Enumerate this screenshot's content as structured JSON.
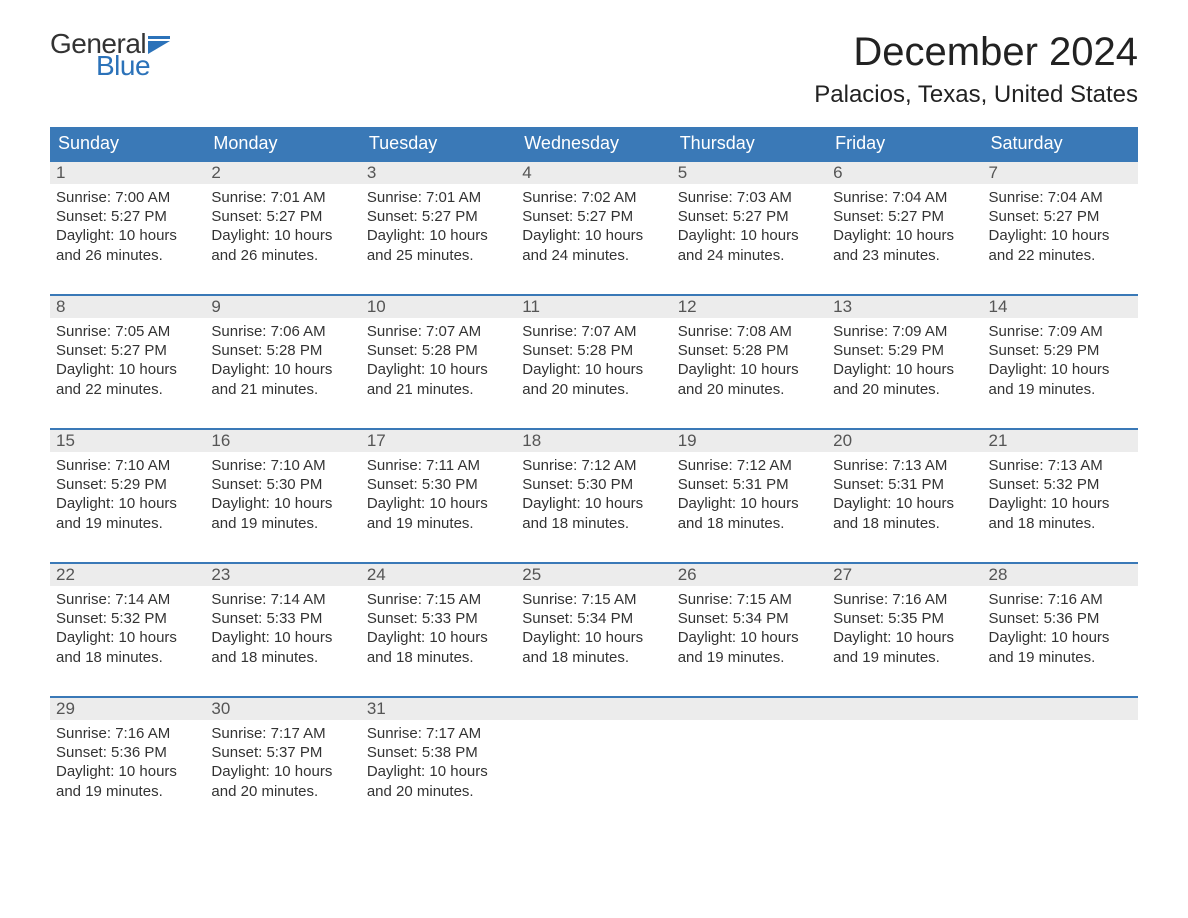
{
  "logo": {
    "general": "General",
    "blue": "Blue",
    "flag_color": "#2b72b9"
  },
  "title": "December 2024",
  "location": "Palacios, Texas, United States",
  "colors": {
    "header_bg": "#3a79b7",
    "header_text": "#ffffff",
    "daynum_bg": "#ececec",
    "daynum_text": "#555555",
    "body_text": "#333333",
    "week_border": "#3a79b7",
    "background": "#ffffff",
    "logo_blue": "#2b72b9"
  },
  "typography": {
    "title_fontsize": 40,
    "location_fontsize": 24,
    "dayheader_fontsize": 18,
    "daynum_fontsize": 17,
    "content_fontsize": 15,
    "font_family": "Arial"
  },
  "day_names": [
    "Sunday",
    "Monday",
    "Tuesday",
    "Wednesday",
    "Thursday",
    "Friday",
    "Saturday"
  ],
  "days": [
    {
      "n": "1",
      "sunrise": "7:00 AM",
      "sunset": "5:27 PM",
      "daylight": "10 hours and 26 minutes."
    },
    {
      "n": "2",
      "sunrise": "7:01 AM",
      "sunset": "5:27 PM",
      "daylight": "10 hours and 26 minutes."
    },
    {
      "n": "3",
      "sunrise": "7:01 AM",
      "sunset": "5:27 PM",
      "daylight": "10 hours and 25 minutes."
    },
    {
      "n": "4",
      "sunrise": "7:02 AM",
      "sunset": "5:27 PM",
      "daylight": "10 hours and 24 minutes."
    },
    {
      "n": "5",
      "sunrise": "7:03 AM",
      "sunset": "5:27 PM",
      "daylight": "10 hours and 24 minutes."
    },
    {
      "n": "6",
      "sunrise": "7:04 AM",
      "sunset": "5:27 PM",
      "daylight": "10 hours and 23 minutes."
    },
    {
      "n": "7",
      "sunrise": "7:04 AM",
      "sunset": "5:27 PM",
      "daylight": "10 hours and 22 minutes."
    },
    {
      "n": "8",
      "sunrise": "7:05 AM",
      "sunset": "5:27 PM",
      "daylight": "10 hours and 22 minutes."
    },
    {
      "n": "9",
      "sunrise": "7:06 AM",
      "sunset": "5:28 PM",
      "daylight": "10 hours and 21 minutes."
    },
    {
      "n": "10",
      "sunrise": "7:07 AM",
      "sunset": "5:28 PM",
      "daylight": "10 hours and 21 minutes."
    },
    {
      "n": "11",
      "sunrise": "7:07 AM",
      "sunset": "5:28 PM",
      "daylight": "10 hours and 20 minutes."
    },
    {
      "n": "12",
      "sunrise": "7:08 AM",
      "sunset": "5:28 PM",
      "daylight": "10 hours and 20 minutes."
    },
    {
      "n": "13",
      "sunrise": "7:09 AM",
      "sunset": "5:29 PM",
      "daylight": "10 hours and 20 minutes."
    },
    {
      "n": "14",
      "sunrise": "7:09 AM",
      "sunset": "5:29 PM",
      "daylight": "10 hours and 19 minutes."
    },
    {
      "n": "15",
      "sunrise": "7:10 AM",
      "sunset": "5:29 PM",
      "daylight": "10 hours and 19 minutes."
    },
    {
      "n": "16",
      "sunrise": "7:10 AM",
      "sunset": "5:30 PM",
      "daylight": "10 hours and 19 minutes."
    },
    {
      "n": "17",
      "sunrise": "7:11 AM",
      "sunset": "5:30 PM",
      "daylight": "10 hours and 19 minutes."
    },
    {
      "n": "18",
      "sunrise": "7:12 AM",
      "sunset": "5:30 PM",
      "daylight": "10 hours and 18 minutes."
    },
    {
      "n": "19",
      "sunrise": "7:12 AM",
      "sunset": "5:31 PM",
      "daylight": "10 hours and 18 minutes."
    },
    {
      "n": "20",
      "sunrise": "7:13 AM",
      "sunset": "5:31 PM",
      "daylight": "10 hours and 18 minutes."
    },
    {
      "n": "21",
      "sunrise": "7:13 AM",
      "sunset": "5:32 PM",
      "daylight": "10 hours and 18 minutes."
    },
    {
      "n": "22",
      "sunrise": "7:14 AM",
      "sunset": "5:32 PM",
      "daylight": "10 hours and 18 minutes."
    },
    {
      "n": "23",
      "sunrise": "7:14 AM",
      "sunset": "5:33 PM",
      "daylight": "10 hours and 18 minutes."
    },
    {
      "n": "24",
      "sunrise": "7:15 AM",
      "sunset": "5:33 PM",
      "daylight": "10 hours and 18 minutes."
    },
    {
      "n": "25",
      "sunrise": "7:15 AM",
      "sunset": "5:34 PM",
      "daylight": "10 hours and 18 minutes."
    },
    {
      "n": "26",
      "sunrise": "7:15 AM",
      "sunset": "5:34 PM",
      "daylight": "10 hours and 19 minutes."
    },
    {
      "n": "27",
      "sunrise": "7:16 AM",
      "sunset": "5:35 PM",
      "daylight": "10 hours and 19 minutes."
    },
    {
      "n": "28",
      "sunrise": "7:16 AM",
      "sunset": "5:36 PM",
      "daylight": "10 hours and 19 minutes."
    },
    {
      "n": "29",
      "sunrise": "7:16 AM",
      "sunset": "5:36 PM",
      "daylight": "10 hours and 19 minutes."
    },
    {
      "n": "30",
      "sunrise": "7:17 AM",
      "sunset": "5:37 PM",
      "daylight": "10 hours and 20 minutes."
    },
    {
      "n": "31",
      "sunrise": "7:17 AM",
      "sunset": "5:38 PM",
      "daylight": "10 hours and 20 minutes."
    }
  ],
  "layout": {
    "first_day_column": 0,
    "total_cells": 35,
    "labels": {
      "sunrise": "Sunrise:",
      "sunset": "Sunset:",
      "daylight": "Daylight:"
    }
  }
}
